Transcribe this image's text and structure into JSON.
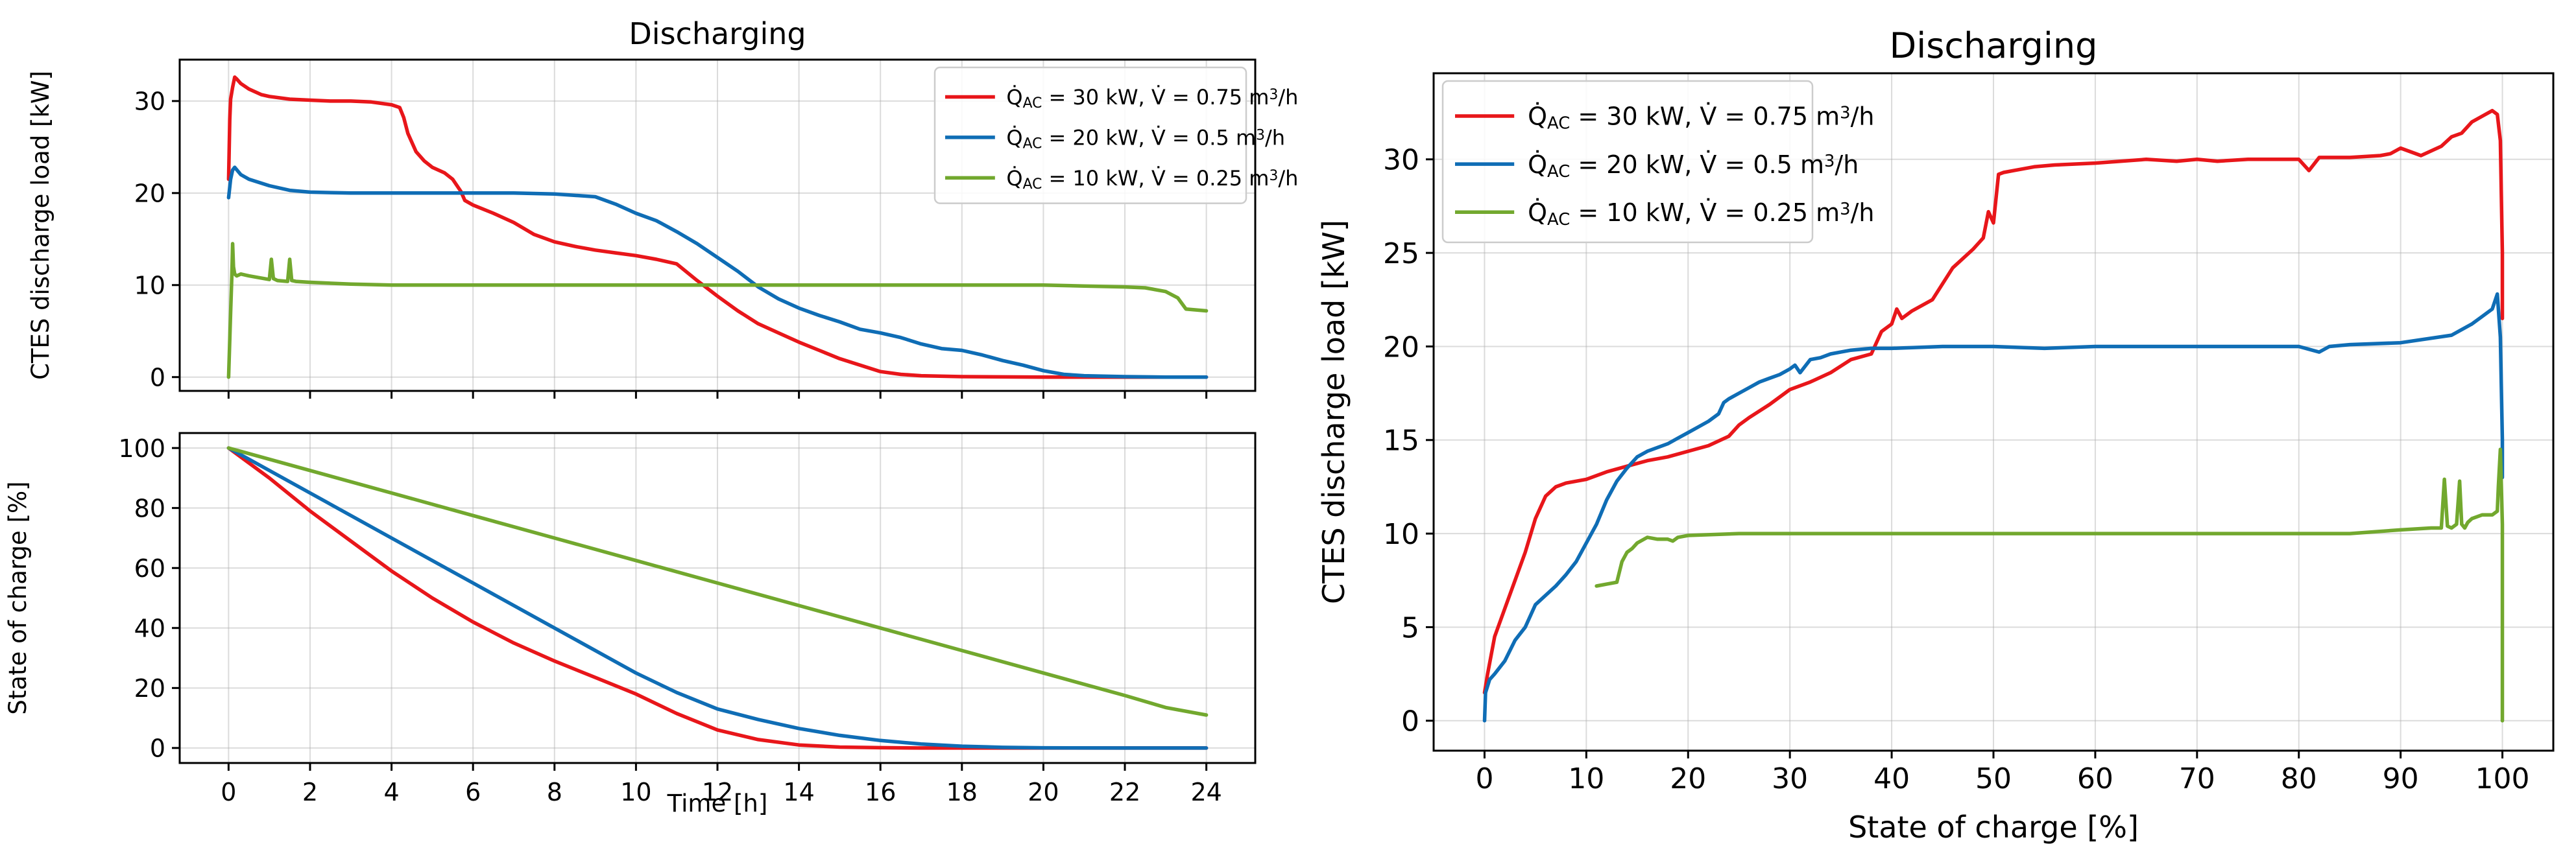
{
  "chart_data": [
    {
      "type": "line",
      "panel": "top-left",
      "title": "Discharging",
      "xlabel": "",
      "ylabel": "CTES discharge load [kW]",
      "xlim": [
        -1.2,
        25.2
      ],
      "ylim": [
        -1.5,
        34.5
      ],
      "xticks": [
        0,
        2,
        4,
        6,
        8,
        10,
        12,
        14,
        16,
        18,
        20,
        22,
        24
      ],
      "xticklabels_visible": false,
      "yticks": [
        0,
        10,
        20,
        30
      ],
      "grid": true,
      "legend": {
        "location": "top-right",
        "font": "small"
      },
      "series": [
        {
          "name": "30 kW / 0.75",
          "label_html": "Q̇<sub>AC</sub> = 30 kW, V̇ = 0.75 m<sup>3</sup>/h",
          "label_text": "Q̇AC = 30 kW, V̇ = 0.75 m3/h",
          "color": "#e8161a",
          "x": [
            0,
            0.03,
            0.05,
            0.1,
            0.15,
            0.2,
            0.3,
            0.5,
            0.8,
            1,
            1.5,
            2,
            2.5,
            3,
            3.5,
            4,
            4.2,
            4.3,
            4.4,
            4.6,
            4.8,
            5,
            5.3,
            5.5,
            5.7,
            5.8,
            6,
            6.5,
            7,
            7.5,
            8,
            8.5,
            9,
            9.5,
            10,
            10.5,
            11,
            11.5,
            12,
            12.5,
            13,
            13.5,
            14,
            14.5,
            15,
            15.5,
            16,
            16.5,
            17,
            18,
            20,
            22,
            24
          ],
          "y": [
            21.5,
            28,
            30.2,
            31.5,
            32.6,
            32.4,
            31.9,
            31.3,
            30.7,
            30.5,
            30.2,
            30.1,
            30.0,
            30.0,
            29.9,
            29.6,
            29.3,
            28.2,
            26.5,
            24.5,
            23.5,
            22.8,
            22.2,
            21.5,
            20.2,
            19.2,
            18.7,
            17.8,
            16.8,
            15.5,
            14.7,
            14.2,
            13.8,
            13.5,
            13.2,
            12.8,
            12.3,
            10.5,
            8.8,
            7.2,
            5.8,
            4.8,
            3.8,
            2.9,
            2.0,
            1.3,
            0.6,
            0.3,
            0.15,
            0.05,
            0,
            0,
            0
          ]
        },
        {
          "name": "20 kW / 0.5",
          "label_html": "Q̇<sub>AC</sub> = 20 kW, V̇ = 0.5 m<sup>3</sup>/h",
          "label_text": "Q̇AC = 20 kW, V̇ = 0.5 m3/h",
          "color": "#0f6db5",
          "x": [
            0,
            0.05,
            0.1,
            0.15,
            0.3,
            0.5,
            1,
            1.5,
            2,
            3,
            4,
            5,
            6,
            7,
            8,
            9,
            9.5,
            10,
            10.5,
            11,
            11.5,
            12,
            12.5,
            13,
            13.5,
            14,
            14.5,
            15,
            15.5,
            16,
            16.5,
            17,
            17.5,
            18,
            18.5,
            19,
            19.5,
            20,
            20.5,
            21,
            22,
            23,
            24
          ],
          "y": [
            19.5,
            21.5,
            22.5,
            22.8,
            22.0,
            21.5,
            20.8,
            20.3,
            20.1,
            20.0,
            20.0,
            20.0,
            20.0,
            20.0,
            19.9,
            19.6,
            18.8,
            17.8,
            17.0,
            15.8,
            14.5,
            13.0,
            11.5,
            9.8,
            8.5,
            7.5,
            6.7,
            6.0,
            5.2,
            4.8,
            4.3,
            3.6,
            3.1,
            2.9,
            2.4,
            1.8,
            1.3,
            0.7,
            0.3,
            0.15,
            0.05,
            0,
            0
          ]
        },
        {
          "name": "10 kW / 0.25",
          "label_html": "Q̇<sub>AC</sub> = 10 kW, V̇ = 0.25 m<sup>3</sup>/h",
          "label_text": "Q̇AC = 10 kW, V̇ = 0.25 m3/h",
          "color": "#72a82e",
          "x": [
            0,
            0.05,
            0.08,
            0.1,
            0.12,
            0.15,
            0.2,
            0.3,
            0.5,
            1,
            1.05,
            1.1,
            1.2,
            1.45,
            1.5,
            1.55,
            1.65,
            2,
            3,
            4,
            6,
            8,
            10,
            12,
            14,
            16,
            18,
            20,
            21,
            22,
            22.5,
            23,
            23.3,
            23.5,
            24
          ],
          "y": [
            0,
            7,
            11,
            14.5,
            12,
            11.2,
            11.0,
            11.2,
            11.0,
            10.6,
            12.8,
            10.7,
            10.5,
            10.4,
            12.8,
            10.5,
            10.4,
            10.3,
            10.1,
            10.0,
            10.0,
            10.0,
            10.0,
            10.0,
            10.0,
            10.0,
            10.0,
            10.0,
            9.9,
            9.8,
            9.7,
            9.3,
            8.6,
            7.4,
            7.2
          ]
        }
      ]
    },
    {
      "type": "line",
      "panel": "bottom-left",
      "title": "",
      "xlabel": "Time [h]",
      "ylabel": "State of charge [%]",
      "xlim": [
        -1.2,
        25.2
      ],
      "ylim": [
        -5,
        105
      ],
      "xticks": [
        0,
        2,
        4,
        6,
        8,
        10,
        12,
        14,
        16,
        18,
        20,
        22,
        24
      ],
      "yticks": [
        0,
        20,
        40,
        60,
        80,
        100
      ],
      "grid": true,
      "series": [
        {
          "name": "30 kW / 0.75",
          "color": "#e8161a",
          "x": [
            0,
            1,
            2,
            3,
            4,
            5,
            6,
            7,
            8,
            9,
            10,
            11,
            12,
            13,
            14,
            15,
            16,
            17,
            18,
            20,
            22,
            24
          ],
          "y": [
            100,
            90,
            79,
            69,
            59,
            50,
            42,
            35,
            29,
            23.5,
            18,
            11.5,
            6,
            2.8,
            1,
            0.3,
            0.1,
            0,
            0,
            0,
            0,
            0
          ]
        },
        {
          "name": "20 kW / 0.5",
          "color": "#0f6db5",
          "x": [
            0,
            2,
            4,
            6,
            8,
            10,
            11,
            12,
            13,
            14,
            15,
            16,
            17,
            18,
            19,
            20,
            22,
            24
          ],
          "y": [
            100,
            85,
            70,
            55,
            40,
            25,
            18.5,
            13,
            9.5,
            6.5,
            4.2,
            2.5,
            1.3,
            0.6,
            0.2,
            0.05,
            0,
            0
          ]
        },
        {
          "name": "10 kW / 0.25",
          "color": "#72a82e",
          "x": [
            0,
            2,
            4,
            6,
            8,
            10,
            12,
            14,
            16,
            18,
            20,
            22,
            23,
            24
          ],
          "y": [
            100,
            92.5,
            85,
            77.5,
            70,
            62.5,
            55,
            47.5,
            40,
            32.5,
            25,
            17.5,
            13.5,
            11
          ]
        }
      ]
    },
    {
      "type": "line",
      "panel": "right",
      "title": "Discharging",
      "xlabel": "State of charge [%]",
      "ylabel": "CTES discharge load [kW]",
      "xlim": [
        -5,
        105
      ],
      "ylim": [
        -1.6,
        34.6
      ],
      "xticks": [
        0,
        10,
        20,
        30,
        40,
        50,
        60,
        70,
        80,
        90,
        100
      ],
      "yticks": [
        0,
        5,
        10,
        15,
        20,
        25,
        30
      ],
      "grid": true,
      "legend": {
        "location": "top-left",
        "font": "medium"
      },
      "series": [
        {
          "name": "30 kW / 0.75",
          "label_html": "Q̇<sub>AC</sub> = 30 kW, V̇ = 0.75 m<sup>3</sup>/h",
          "label_text": "Q̇AC = 30 kW, V̇ = 0.75 m3/h",
          "color": "#e8161a",
          "x": [
            0,
            0.3,
            1,
            2,
            3,
            4,
            5,
            6,
            7,
            8,
            9,
            10,
            12,
            14,
            16,
            18,
            20,
            22,
            24,
            25,
            26,
            28,
            30,
            32,
            34,
            36,
            38,
            39,
            40,
            40.5,
            41,
            42,
            44,
            46,
            48,
            49,
            49.5,
            50,
            50.5,
            51,
            52,
            54,
            56,
            60,
            65,
            68,
            70,
            72,
            75,
            80,
            81,
            82,
            85,
            88,
            89,
            90,
            92,
            94,
            95,
            96,
            97,
            98,
            99,
            99.5,
            99.8,
            100,
            100
          ],
          "y": [
            1.5,
            2.5,
            4.5,
            6,
            7.5,
            9,
            10.8,
            12.0,
            12.5,
            12.7,
            12.8,
            12.9,
            13.3,
            13.6,
            13.9,
            14.1,
            14.4,
            14.7,
            15.2,
            15.8,
            16.2,
            16.9,
            17.7,
            18.1,
            18.6,
            19.3,
            19.6,
            20.8,
            21.2,
            22.0,
            21.5,
            21.9,
            22.5,
            24.2,
            25.2,
            25.8,
            27.2,
            26.6,
            29.2,
            29.3,
            29.4,
            29.6,
            29.7,
            29.8,
            30.0,
            29.9,
            30.0,
            29.9,
            30.0,
            30.0,
            29.4,
            30.1,
            30.1,
            30.2,
            30.3,
            30.6,
            30.2,
            30.7,
            31.2,
            31.4,
            32.0,
            32.3,
            32.6,
            32.4,
            31.0,
            25.0,
            21.5
          ]
        },
        {
          "name": "20 kW / 0.5",
          "label_html": "Q̇<sub>AC</sub> = 20 kW, V̇ = 0.5 m<sup>3</sup>/h",
          "label_text": "Q̇AC = 20 kW, V̇ = 0.5 m3/h",
          "color": "#0f6db5",
          "x": [
            0,
            0.1,
            0.5,
            1,
            2,
            3,
            4,
            5,
            6,
            7,
            8,
            9,
            10,
            11,
            12,
            13,
            14,
            15,
            16,
            17,
            18,
            19,
            20,
            21,
            22,
            23,
            23.5,
            24,
            25,
            26,
            27,
            28,
            29,
            30,
            30.5,
            31,
            32,
            33,
            34,
            35,
            36,
            38,
            40,
            45,
            50,
            55,
            60,
            70,
            80,
            82,
            83,
            85,
            90,
            95,
            97,
            98,
            99,
            99.5,
            99.8,
            100,
            100
          ],
          "y": [
            0,
            1.5,
            2.2,
            2.5,
            3.2,
            4.3,
            5.0,
            6.2,
            6.7,
            7.2,
            7.8,
            8.5,
            9.5,
            10.5,
            11.8,
            12.8,
            13.5,
            14.1,
            14.4,
            14.6,
            14.8,
            15.1,
            15.4,
            15.7,
            16.0,
            16.4,
            17.0,
            17.2,
            17.5,
            17.8,
            18.1,
            18.3,
            18.5,
            18.8,
            19.0,
            18.6,
            19.3,
            19.4,
            19.6,
            19.7,
            19.8,
            19.9,
            19.9,
            20.0,
            20.0,
            19.9,
            20.0,
            20.0,
            20.0,
            19.7,
            20.0,
            20.1,
            20.2,
            20.6,
            21.2,
            21.6,
            22.0,
            22.8,
            20.5,
            15.0,
            13.0
          ]
        },
        {
          "name": "10 kW / 0.25",
          "label_html": "Q̇<sub>AC</sub> = 10 kW, V̇ = 0.25 m<sup>3</sup>/h",
          "label_text": "Q̇AC = 10 kW, V̇ = 0.25 m3/h",
          "color": "#72a82e",
          "x": [
            11,
            12,
            13,
            13.5,
            14,
            14.5,
            15,
            16,
            17,
            18,
            18.5,
            19,
            20,
            25,
            30,
            40,
            50,
            60,
            70,
            80,
            85,
            90,
            93,
            94,
            94.3,
            94.6,
            95,
            95.5,
            95.8,
            96,
            96.3,
            96.6,
            97,
            98,
            99,
            99.5,
            99.6,
            99.8,
            100,
            100,
            100
          ],
          "y": [
            7.2,
            7.3,
            7.4,
            8.5,
            9.0,
            9.2,
            9.5,
            9.8,
            9.7,
            9.7,
            9.6,
            9.8,
            9.9,
            10.0,
            10.0,
            10.0,
            10.0,
            10.0,
            10.0,
            10.0,
            10.0,
            10.2,
            10.3,
            10.3,
            12.9,
            10.4,
            10.3,
            10.5,
            12.8,
            10.5,
            10.3,
            10.6,
            10.8,
            11.0,
            11.0,
            11.2,
            12.5,
            14.5,
            10.5,
            5.0,
            0
          ]
        }
      ]
    }
  ]
}
